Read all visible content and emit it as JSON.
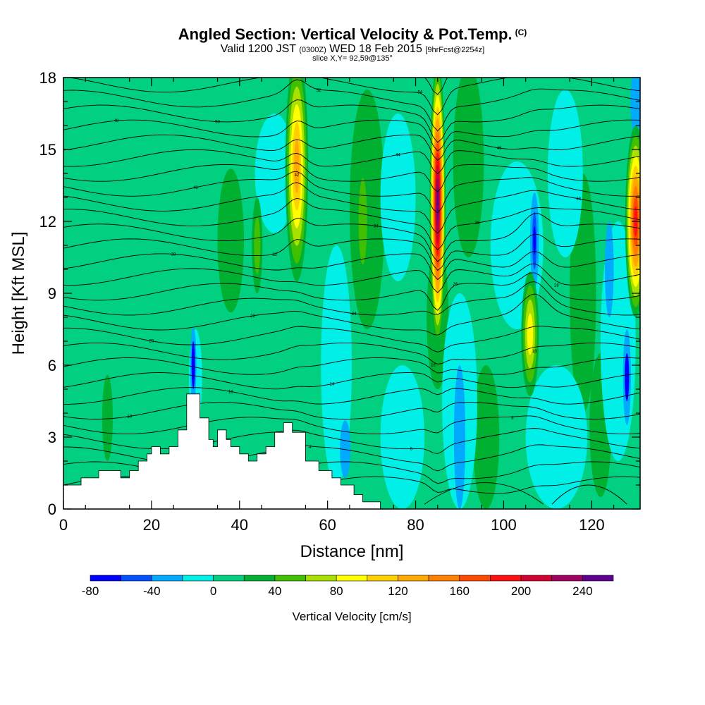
{
  "title": {
    "main": "Angled Section: Vertical Velocity & Pot.Temp.",
    "unit": "(C)",
    "valid_prefix": "Valid 1200 JST",
    "valid_utc": "(0300Z)",
    "valid_date": "WED 18 Feb 2015",
    "forecast": "[9hrFcst@2254z]",
    "slice": "slice X,Y= 92,59@135°"
  },
  "chart_data": {
    "type": "filled-contour cross-section",
    "xlabel": "Distance [nm]",
    "ylabel": "Height [Kft MSL]",
    "xlim": [
      0,
      131
    ],
    "ylim": [
      0,
      18
    ],
    "xticks": [
      0,
      20,
      40,
      60,
      80,
      100,
      120
    ],
    "yticks": [
      0,
      3,
      6,
      9,
      12,
      15,
      18
    ],
    "grid": false,
    "colorbar": {
      "title": "Vertical Velocity [cm/s]",
      "placement": "bottom",
      "levels": [
        -80,
        -60,
        -40,
        -20,
        0,
        20,
        40,
        60,
        80,
        100,
        120,
        140,
        160,
        180,
        200,
        220,
        240,
        260
      ],
      "labels": [
        -80,
        -40,
        0,
        40,
        80,
        120,
        160,
        200,
        240
      ],
      "colors": [
        "#0000ff",
        "#0050ff",
        "#00aaff",
        "#00f0e8",
        "#00d080",
        "#00b030",
        "#40c000",
        "#a8e000",
        "#ffff00",
        "#ffd000",
        "#ffa800",
        "#ff8000",
        "#ff4800",
        "#ff1010",
        "#d00030",
        "#a00060",
        "#600090"
      ]
    },
    "terrain": [
      {
        "x": 0,
        "h": 1.0
      },
      {
        "x": 4,
        "h": 1.0
      },
      {
        "x": 4,
        "h": 1.3
      },
      {
        "x": 8,
        "h": 1.3
      },
      {
        "x": 8,
        "h": 1.6
      },
      {
        "x": 13,
        "h": 1.6
      },
      {
        "x": 13,
        "h": 1.3
      },
      {
        "x": 15,
        "h": 1.3
      },
      {
        "x": 15,
        "h": 1.6
      },
      {
        "x": 17,
        "h": 1.6
      },
      {
        "x": 17,
        "h": 2.0
      },
      {
        "x": 19,
        "h": 2.0
      },
      {
        "x": 19,
        "h": 2.3
      },
      {
        "x": 20,
        "h": 2.3
      },
      {
        "x": 20,
        "h": 2.6
      },
      {
        "x": 22,
        "h": 2.6
      },
      {
        "x": 22,
        "h": 2.3
      },
      {
        "x": 24,
        "h": 2.3
      },
      {
        "x": 24,
        "h": 2.6
      },
      {
        "x": 26,
        "h": 2.6
      },
      {
        "x": 26,
        "h": 3.3
      },
      {
        "x": 28,
        "h": 3.3
      },
      {
        "x": 28,
        "h": 4.8
      },
      {
        "x": 31,
        "h": 4.8
      },
      {
        "x": 31,
        "h": 3.8
      },
      {
        "x": 33,
        "h": 3.8
      },
      {
        "x": 33,
        "h": 2.9
      },
      {
        "x": 34,
        "h": 2.9
      },
      {
        "x": 34,
        "h": 2.6
      },
      {
        "x": 35,
        "h": 2.6
      },
      {
        "x": 35,
        "h": 3.3
      },
      {
        "x": 37,
        "h": 3.3
      },
      {
        "x": 37,
        "h": 2.9
      },
      {
        "x": 38,
        "h": 2.9
      },
      {
        "x": 38,
        "h": 2.6
      },
      {
        "x": 40,
        "h": 2.6
      },
      {
        "x": 40,
        "h": 2.3
      },
      {
        "x": 42,
        "h": 2.3
      },
      {
        "x": 42,
        "h": 2.0
      },
      {
        "x": 44,
        "h": 2.0
      },
      {
        "x": 44,
        "h": 2.3
      },
      {
        "x": 46,
        "h": 2.3
      },
      {
        "x": 46,
        "h": 2.6
      },
      {
        "x": 48,
        "h": 2.6
      },
      {
        "x": 48,
        "h": 3.2
      },
      {
        "x": 50,
        "h": 3.2
      },
      {
        "x": 50,
        "h": 3.6
      },
      {
        "x": 52,
        "h": 3.6
      },
      {
        "x": 52,
        "h": 3.2
      },
      {
        "x": 55,
        "h": 3.2
      },
      {
        "x": 55,
        "h": 2.0
      },
      {
        "x": 58,
        "h": 2.0
      },
      {
        "x": 58,
        "h": 1.6
      },
      {
        "x": 61,
        "h": 1.6
      },
      {
        "x": 61,
        "h": 1.3
      },
      {
        "x": 63,
        "h": 1.3
      },
      {
        "x": 63,
        "h": 1.0
      },
      {
        "x": 66,
        "h": 1.0
      },
      {
        "x": 66,
        "h": 0.6
      },
      {
        "x": 68,
        "h": 0.6
      },
      {
        "x": 68,
        "h": 0.3
      },
      {
        "x": 72,
        "h": 0.3
      },
      {
        "x": 72,
        "h": 0
      }
    ],
    "features": [
      {
        "type": "updraft",
        "x": 53,
        "y": 14.3,
        "max_cms": 140
      },
      {
        "type": "updraft",
        "x": 85,
        "y": 12.7,
        "max_cms": 240
      },
      {
        "type": "updraft",
        "x": 106,
        "y": 7.3,
        "max_cms": 100
      },
      {
        "type": "updraft",
        "x": 130,
        "y": 12.0,
        "max_cms": 200
      },
      {
        "type": "downdraft",
        "x": 29,
        "y": 6.0,
        "min_cms": -80
      },
      {
        "type": "downdraft",
        "x": 107,
        "y": 11.2,
        "min_cms": -80
      },
      {
        "type": "downdraft",
        "x": 128,
        "y": 5.5,
        "min_cms": -80
      }
    ],
    "isentropes_c": [
      -2,
      2,
      4,
      6,
      8,
      10,
      12,
      14,
      16,
      18,
      20,
      22,
      24,
      26,
      28,
      30,
      32,
      34,
      36,
      38,
      40,
      42,
      44,
      46,
      48,
      50,
      52,
      54,
      56
    ]
  }
}
